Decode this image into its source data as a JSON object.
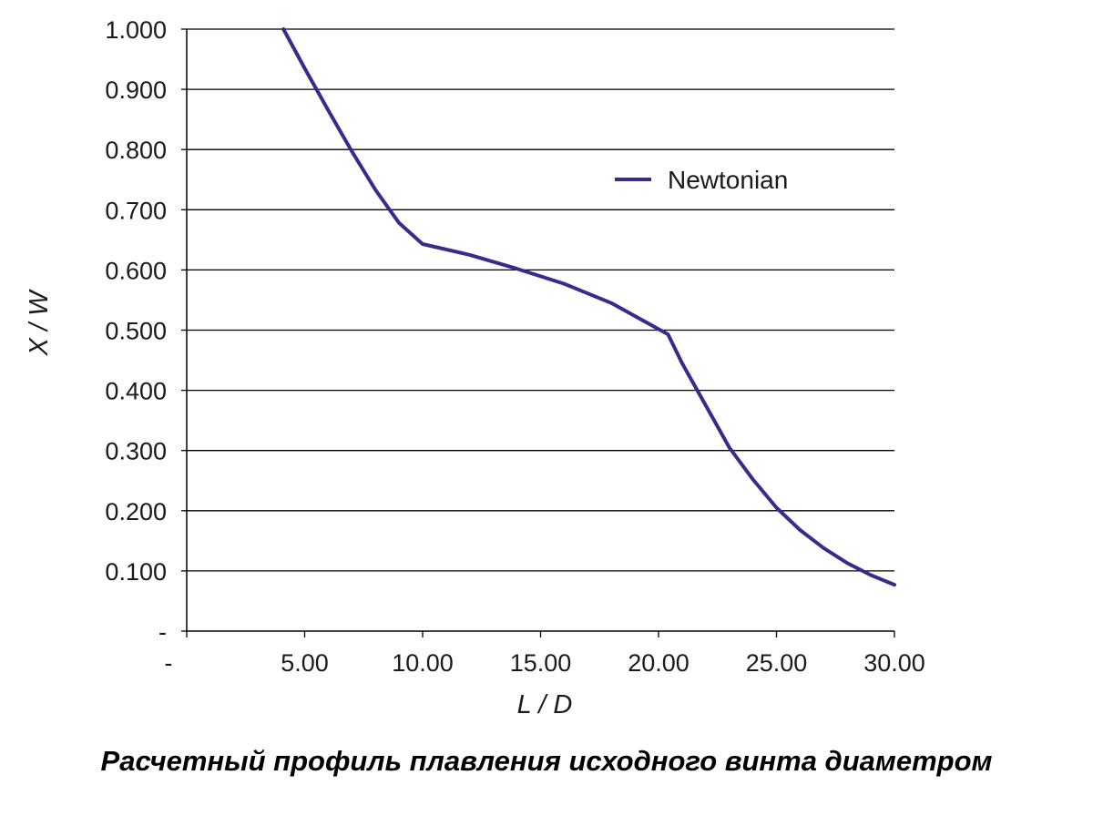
{
  "chart_data": {
    "type": "line",
    "xlabel": "L / D",
    "ylabel": "X / W",
    "xlim": [
      0,
      30
    ],
    "ylim": [
      0,
      1
    ],
    "x_ticks": [
      0,
      5,
      10,
      15,
      20,
      25,
      30
    ],
    "x_tick_labels": [
      "-",
      "5.00",
      "10.00",
      "15.00",
      "20.00",
      "25.00",
      "30.00"
    ],
    "y_ticks": [
      0,
      0.1,
      0.2,
      0.3,
      0.4,
      0.5,
      0.6,
      0.7,
      0.8,
      0.9,
      1.0
    ],
    "y_tick_labels": [
      "-",
      "0.100",
      "0.200",
      "0.300",
      "0.400",
      "0.500",
      "0.600",
      "0.700",
      "0.800",
      "0.900",
      "1.000"
    ],
    "grid": "horizontal",
    "legend": "upper-right",
    "series": [
      {
        "name": "Newtonian",
        "color": "#3a2a8c",
        "x": [
          4.1,
          5.0,
          6.0,
          7.0,
          8.0,
          9.0,
          10.0,
          12.0,
          14.0,
          16.0,
          18.0,
          20.4,
          21.0,
          22.0,
          23.0,
          24.0,
          25.0,
          26.0,
          27.0,
          28.0,
          29.0,
          30.0
        ],
        "y": [
          1.0,
          0.935,
          0.865,
          0.797,
          0.733,
          0.678,
          0.643,
          0.625,
          0.602,
          0.577,
          0.545,
          0.493,
          0.445,
          0.375,
          0.305,
          0.252,
          0.205,
          0.168,
          0.138,
          0.113,
          0.093,
          0.077
        ]
      }
    ]
  },
  "caption": "Расчетный профиль плавления исходного винта диаметром"
}
